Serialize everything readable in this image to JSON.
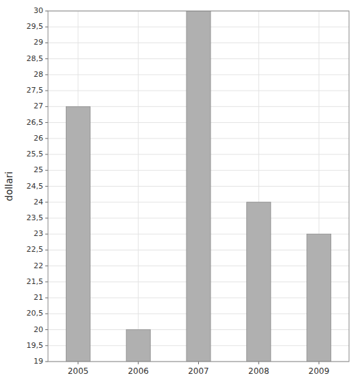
{
  "chart_data": {
    "type": "bar",
    "y_label": "dollari",
    "categories": [
      "2005",
      "2006",
      "2007",
      "2008",
      "2009"
    ],
    "values": [
      27,
      20,
      30,
      24,
      23
    ],
    "color": "#b0b0b0",
    "ylim": [
      19,
      30
    ],
    "yticks": [
      19,
      {
        "value": 19.5,
        "label": "19,5"
      },
      20,
      {
        "value": 20.5,
        "label": "20,5"
      },
      21,
      {
        "value": 21.5,
        "label": "21,5"
      },
      22,
      {
        "value": 22.5,
        "label": "22,5"
      },
      23,
      {
        "value": 23.5,
        "label": "23,5"
      },
      24,
      {
        "value": 24.5,
        "label": "24,5"
      },
      25,
      {
        "value": 25.5,
        "label": "25,5"
      },
      26,
      {
        "value": 26.5,
        "label": "26,5"
      },
      27,
      {
        "value": 27.5,
        "label": "27,5"
      },
      28,
      {
        "value": 28.5,
        "label": "28,5"
      },
      29,
      {
        "value": 29.5,
        "label": "29,5"
      },
      30
    ],
    "grid": true
  }
}
